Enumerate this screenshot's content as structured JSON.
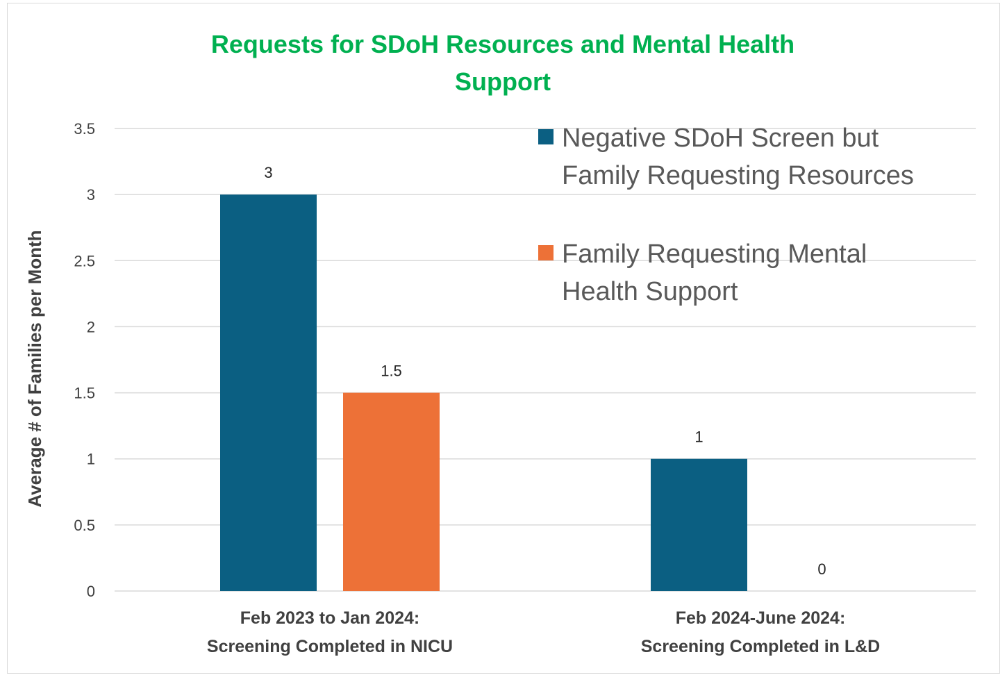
{
  "chart_data": {
    "type": "bar",
    "title": "Requests for SDoH Resources and Mental Health Support",
    "title_lines": [
      "Requests for SDoH Resources and Mental Health",
      "Support"
    ],
    "ylabel": "Average # of Families per Month",
    "ylim": [
      0,
      3.5
    ],
    "yticks": [
      "0",
      "0.5",
      "1",
      "1.5",
      "2",
      "2.5",
      "3",
      "3.5"
    ],
    "categories": [
      "Feb 2023 to Jan 2024: Screening Completed in NICU",
      "Feb 2024-June 2024: Screening Completed in L&D"
    ],
    "category_lines": [
      [
        "Feb 2023 to Jan 2024:",
        "Screening Completed in NICU"
      ],
      [
        "Feb 2024-June 2024:",
        "Screening Completed in L&D"
      ]
    ],
    "series": [
      {
        "name": "Negative SDoH Screen but Family Requesting Resources",
        "legend_lines": [
          "Negative SDoH Screen but",
          "Family Requesting Resources"
        ],
        "color": "#0B5F82",
        "values": [
          3,
          1
        ],
        "labels": [
          "3",
          "1"
        ]
      },
      {
        "name": "Family Requesting Mental Health Support",
        "legend_lines": [
          "Family Requesting Mental",
          "Health Support"
        ],
        "color": "#ED7137",
        "values": [
          1.5,
          0
        ],
        "labels": [
          "1.5",
          "0"
        ]
      }
    ],
    "grid": true,
    "legend_position": "top-right"
  }
}
